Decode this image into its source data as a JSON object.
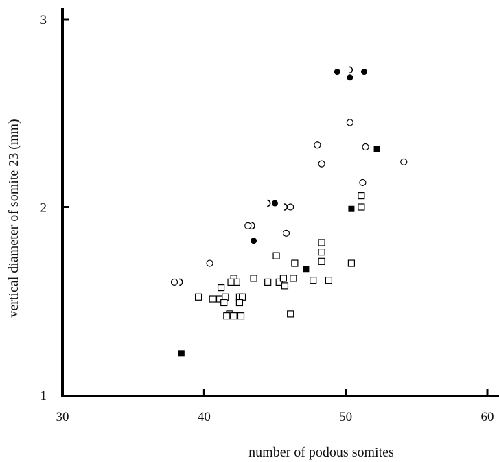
{
  "chart_data": {
    "type": "scatter",
    "xlabel": "number of podous somites",
    "ylabel": "vertical diameter of somite 23 (mm)",
    "xlim": [
      30,
      60
    ],
    "ylim": [
      1,
      3
    ],
    "x_ticks": [
      "30",
      "40",
      "50",
      "60"
    ],
    "y_ticks": [
      "1",
      "2",
      "3"
    ],
    "grid": false,
    "legend": "none",
    "series": [
      {
        "marker": "filled-circle",
        "points": [
          [
            49.4,
            2.72
          ],
          [
            51.3,
            2.72
          ],
          [
            50.3,
            2.69
          ],
          [
            45.0,
            2.02
          ],
          [
            43.5,
            1.82
          ]
        ]
      },
      {
        "marker": "open-circle",
        "points": [
          [
            50.3,
            2.45
          ],
          [
            48.0,
            2.33
          ],
          [
            51.4,
            2.32
          ],
          [
            48.3,
            2.23
          ],
          [
            54.1,
            2.24
          ],
          [
            51.2,
            2.13
          ],
          [
            46.1,
            2.0
          ],
          [
            45.8,
            1.86
          ],
          [
            43.1,
            1.9
          ],
          [
            40.4,
            1.7
          ],
          [
            37.9,
            1.6
          ]
        ]
      },
      {
        "marker": "half-circle",
        "points": [
          [
            50.3,
            2.73
          ],
          [
            44.5,
            2.02
          ],
          [
            45.7,
            2.0
          ],
          [
            43.4,
            1.9
          ],
          [
            38.3,
            1.6
          ]
        ]
      },
      {
        "marker": "filled-square",
        "points": [
          [
            52.2,
            2.31
          ],
          [
            50.4,
            1.99
          ],
          [
            47.2,
            1.67
          ],
          [
            38.4,
            1.22
          ]
        ]
      },
      {
        "marker": "open-square",
        "points": [
          [
            51.1,
            2.06
          ],
          [
            51.1,
            2.0
          ],
          [
            48.3,
            1.81
          ],
          [
            48.3,
            1.76
          ],
          [
            48.3,
            1.71
          ],
          [
            50.4,
            1.7
          ],
          [
            45.1,
            1.74
          ],
          [
            46.4,
            1.7
          ],
          [
            43.5,
            1.62
          ],
          [
            42.1,
            1.62
          ],
          [
            42.3,
            1.6
          ],
          [
            41.9,
            1.6
          ],
          [
            44.5,
            1.6
          ],
          [
            45.3,
            1.6
          ],
          [
            45.6,
            1.62
          ],
          [
            45.7,
            1.58
          ],
          [
            46.3,
            1.62
          ],
          [
            47.7,
            1.61
          ],
          [
            48.8,
            1.61
          ],
          [
            41.2,
            1.57
          ],
          [
            39.6,
            1.52
          ],
          [
            40.6,
            1.51
          ],
          [
            41.1,
            1.51
          ],
          [
            41.5,
            1.52
          ],
          [
            41.4,
            1.49
          ],
          [
            42.5,
            1.52
          ],
          [
            42.7,
            1.52
          ],
          [
            42.5,
            1.49
          ],
          [
            41.8,
            1.43
          ],
          [
            41.6,
            1.42
          ],
          [
            42.1,
            1.42
          ],
          [
            42.6,
            1.42
          ],
          [
            46.1,
            1.43
          ]
        ]
      }
    ]
  }
}
